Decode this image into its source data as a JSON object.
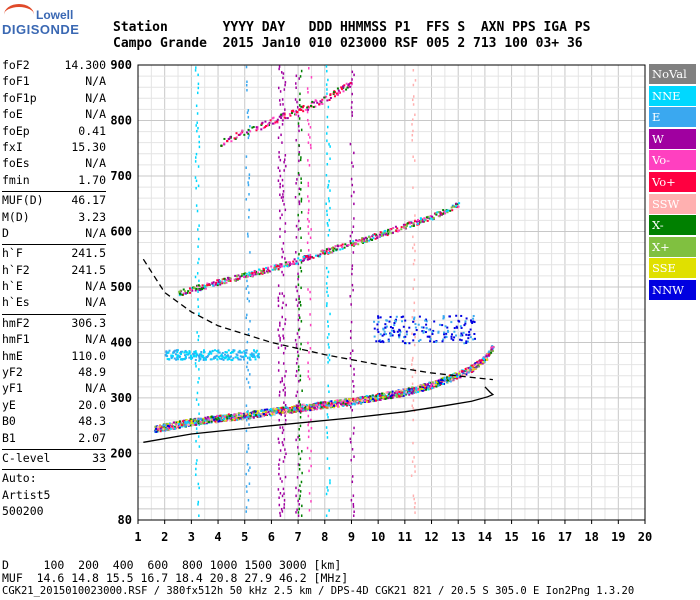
{
  "logo": {
    "top": "Lowell",
    "main": "DIGISONDE"
  },
  "header": {
    "row1": "Station       YYYY DAY   DDD HHMMSS P1  FFS S  AXN PPS IGA PS",
    "row2": "Campo Grande  2015 Jan10 010 023000 RSF 005 2 713 100 03+ 36"
  },
  "params": {
    "group1": [
      {
        "label": "foF2",
        "value": "14.300"
      },
      {
        "label": "foF1",
        "value": "N/A"
      },
      {
        "label": "foF1p",
        "value": "N/A"
      },
      {
        "label": "foE",
        "value": "N/A"
      },
      {
        "label": "foEp",
        "value": "0.41"
      },
      {
        "label": "fxI",
        "value": "15.30"
      },
      {
        "label": "foEs",
        "value": "N/A"
      },
      {
        "label": "fmin",
        "value": "1.70"
      }
    ],
    "group2": [
      {
        "label": "MUF(D)",
        "value": "46.17"
      },
      {
        "label": "M(D)",
        "value": "3.23"
      },
      {
        "label": "D",
        "value": "N/A"
      }
    ],
    "group3": [
      {
        "label": "h`F",
        "value": "241.5"
      },
      {
        "label": "h`F2",
        "value": "241.5"
      },
      {
        "label": "h`E",
        "value": "N/A"
      },
      {
        "label": "h`Es",
        "value": "N/A"
      }
    ],
    "group4": [
      {
        "label": "hmF2",
        "value": "306.3"
      },
      {
        "label": "hmF1",
        "value": "N/A"
      },
      {
        "label": "hmE",
        "value": "110.0"
      },
      {
        "label": "yF2",
        "value": "48.9"
      },
      {
        "label": "yF1",
        "value": "N/A"
      },
      {
        "label": "yE",
        "value": "20.0"
      },
      {
        "label": "B0",
        "value": "48.3"
      },
      {
        "label": "B1",
        "value": "2.07"
      }
    ],
    "group5": [
      {
        "label": "C-level",
        "value": "33"
      }
    ],
    "autoscaling": [
      "Auto:",
      "Artist5",
      "500200"
    ]
  },
  "legend": [
    {
      "label": "NoVal",
      "color": "#808080"
    },
    {
      "label": "NNE",
      "color": "#00d8ff"
    },
    {
      "label": "E",
      "color": "#3aa8f0"
    },
    {
      "label": "W",
      "color": "#a000a0"
    },
    {
      "label": "Vo-",
      "color": "#ff40c0"
    },
    {
      "label": "Vo+",
      "color": "#ff0040"
    },
    {
      "label": "SSW",
      "color": "#ffb0b0"
    },
    {
      "label": "X-",
      "color": "#008000"
    },
    {
      "label": "X+",
      "color": "#80c040"
    },
    {
      "label": "SSE",
      "color": "#e0e000"
    },
    {
      "label": "NNW",
      "color": "#0000e0"
    }
  ],
  "footer": {
    "line1": "D     100  200  400  600  800 1000 1500 3000 [km]",
    "line2": "MUF  14.6 14.8 15.5 16.7 18.4 20.8 27.9 46.2 [MHz]",
    "line3": "CGK21_2015010023000.RSF / 380fx512h 50 kHz 2.5 km / DPS-4D CGK21 821 / 20.5 S 305.0 E Ion2Png 1.3.20"
  },
  "chart_data": {
    "type": "scatter",
    "xlim": [
      1,
      20
    ],
    "ylim": [
      80,
      900
    ],
    "x_ticks": [
      "1",
      "2",
      "3",
      "4",
      "5",
      "6",
      "7",
      "8",
      "9",
      "10",
      "11",
      "12",
      "13",
      "14",
      "15",
      "16",
      "17",
      "18",
      "19",
      "20"
    ],
    "y_ticks": [
      "80",
      "200",
      "300",
      "400",
      "500",
      "600",
      "700",
      "800",
      "900"
    ],
    "grid": true,
    "series": [
      {
        "name": "O-trace (F2)",
        "x": [
          1.6,
          3,
          5,
          7,
          9,
          11,
          12,
          13,
          13.5,
          14,
          14.3
        ],
        "y": [
          245,
          258,
          270,
          283,
          295,
          312,
          325,
          343,
          355,
          372,
          395
        ]
      },
      {
        "name": "2nd hop",
        "x": [
          2.5,
          4,
          6,
          8,
          10,
          12,
          13
        ],
        "y": [
          490,
          510,
          535,
          565,
          595,
          628,
          650
        ]
      },
      {
        "name": "3rd hop",
        "x": [
          4,
          6,
          8,
          9
        ],
        "y": [
          760,
          800,
          840,
          870
        ]
      },
      {
        "name": "profile",
        "x": [
          1.2,
          3,
          6,
          9,
          11,
          12.5,
          13.5,
          14.1,
          14.3,
          14.2,
          14
        ],
        "y": [
          220,
          235,
          250,
          264,
          275,
          286,
          294,
          302,
          306,
          310,
          320
        ]
      },
      {
        "name": "model",
        "x": [
          1.2,
          2,
          3,
          4,
          6,
          8,
          10,
          12,
          13.5,
          14.3
        ],
        "y": [
          550,
          490,
          455,
          430,
          400,
          378,
          360,
          345,
          337,
          333
        ]
      }
    ]
  }
}
